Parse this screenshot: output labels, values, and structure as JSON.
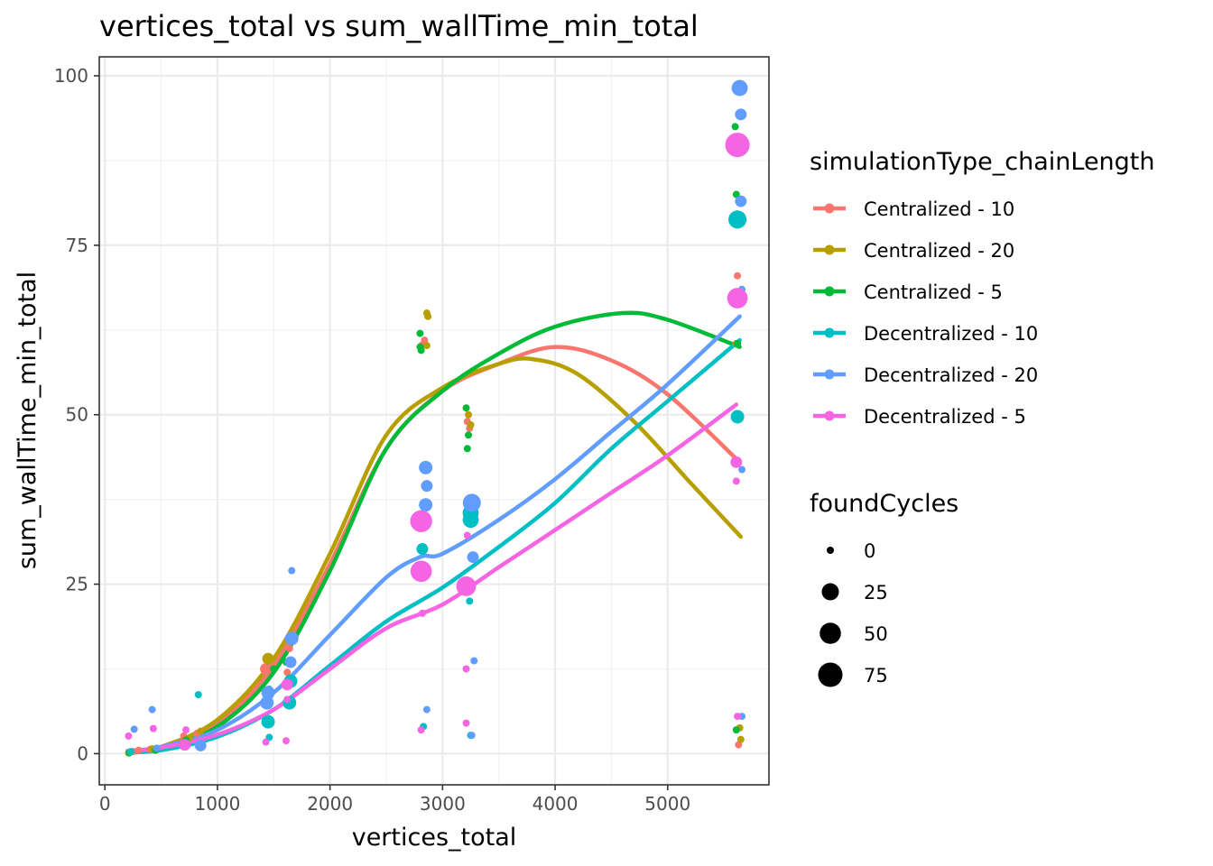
{
  "chart_data": {
    "type": "scatter",
    "title": "vertices_total  vs  sum_wallTime_min_total",
    "xlabel": "vertices_total",
    "ylabel": "sum_wallTime_min_total",
    "xlim": [
      -50,
      5900
    ],
    "ylim": [
      -4.6,
      102.8
    ],
    "x_ticks": [
      0,
      1000,
      2000,
      3000,
      4000,
      5000
    ],
    "y_ticks": [
      0,
      25,
      50,
      75,
      100
    ],
    "grid": true,
    "legend_position": "right",
    "color_legend": {
      "title": "simulationType_chainLength",
      "entries": [
        "Centralized - 10",
        "Centralized - 20",
        "Centralized - 5",
        "Decentralized - 10",
        "Decentralized - 20",
        "Decentralized - 5"
      ]
    },
    "size_legend": {
      "title": "foundCycles",
      "entries": [
        0,
        25,
        50,
        75
      ]
    },
    "colors": [
      "#F8766D",
      "#B79F00",
      "#00BA38",
      "#00BFC4",
      "#619CFF",
      "#F564E3"
    ],
    "series": [
      {
        "name": "Centralized - 10",
        "points": [
          [
            210,
            0.1,
            0
          ],
          [
            250,
            0.3,
            0
          ],
          [
            300,
            0.5,
            0
          ],
          [
            400,
            0.6,
            0
          ],
          [
            700,
            2.6,
            0
          ],
          [
            820,
            3.0,
            0
          ],
          [
            1430,
            12.5,
            5
          ],
          [
            1460,
            13.5,
            0
          ],
          [
            1620,
            12.0,
            0
          ],
          [
            1640,
            15.5,
            0
          ],
          [
            2820,
            60.3,
            0
          ],
          [
            2840,
            61.0,
            0
          ],
          [
            3220,
            49.0,
            0
          ],
          [
            3240,
            48.0,
            0
          ],
          [
            5600,
            43.0,
            0
          ],
          [
            5620,
            70.5,
            0
          ],
          [
            5630,
            1.3,
            0
          ]
        ],
        "trend": [
          [
            200,
            0.2
          ],
          [
            500,
            0.9
          ],
          [
            1000,
            4.5
          ],
          [
            1500,
            13.0
          ],
          [
            2000,
            28.0
          ],
          [
            2500,
            45.0
          ],
          [
            3000,
            53.5
          ],
          [
            3500,
            57.5
          ],
          [
            4000,
            60.0
          ],
          [
            4500,
            58.0
          ],
          [
            5000,
            53.0
          ],
          [
            5640,
            43.0
          ]
        ]
      },
      {
        "name": "Centralized - 20",
        "points": [
          [
            220,
            0.2,
            0
          ],
          [
            420,
            0.7,
            0
          ],
          [
            750,
            2.3,
            0
          ],
          [
            850,
            3.3,
            0
          ],
          [
            1450,
            14.0,
            5
          ],
          [
            1640,
            16.5,
            0
          ],
          [
            2860,
            65.0,
            0
          ],
          [
            2870,
            64.5,
            0
          ],
          [
            2860,
            60.2,
            0
          ],
          [
            3230,
            50.0,
            0
          ],
          [
            3250,
            48.5,
            0
          ],
          [
            5610,
            60.5,
            0
          ],
          [
            5640,
            3.8,
            0
          ],
          [
            5650,
            2.1,
            0
          ]
        ],
        "trend": [
          [
            200,
            0.2
          ],
          [
            500,
            1.0
          ],
          [
            1000,
            5.0
          ],
          [
            1500,
            14.0
          ],
          [
            2000,
            29.5
          ],
          [
            2500,
            47.0
          ],
          [
            3000,
            54.0
          ],
          [
            3500,
            57.5
          ],
          [
            3800,
            58.2
          ],
          [
            4200,
            56.0
          ],
          [
            4700,
            49.0
          ],
          [
            5200,
            40.0
          ],
          [
            5650,
            32.0
          ]
        ]
      },
      {
        "name": "Centralized - 5",
        "points": [
          [
            215,
            0.1,
            0
          ],
          [
            450,
            0.5,
            0
          ],
          [
            720,
            2.0,
            0
          ],
          [
            1460,
            9.5,
            0
          ],
          [
            1500,
            12.5,
            0
          ],
          [
            1610,
            13.5,
            0
          ],
          [
            2800,
            62.0,
            0
          ],
          [
            2810,
            59.5,
            0
          ],
          [
            2800,
            60.0,
            0
          ],
          [
            3210,
            51.0,
            0
          ],
          [
            3220,
            45.0,
            0
          ],
          [
            3230,
            47.0,
            0
          ],
          [
            5600,
            92.5,
            0
          ],
          [
            5610,
            82.5,
            0
          ],
          [
            5620,
            60.5,
            0
          ],
          [
            5610,
            3.5,
            0
          ]
        ],
        "trend": [
          [
            200,
            0.1
          ],
          [
            500,
            0.8
          ],
          [
            1000,
            4.0
          ],
          [
            1500,
            12.0
          ],
          [
            2000,
            27.0
          ],
          [
            2500,
            45.0
          ],
          [
            3000,
            53.5
          ],
          [
            3500,
            59.0
          ],
          [
            4000,
            63.0
          ],
          [
            4600,
            65.0
          ],
          [
            5000,
            64.0
          ],
          [
            5640,
            60.0
          ]
        ]
      },
      {
        "name": "Decentralized - 10",
        "points": [
          [
            230,
            0.3,
            0
          ],
          [
            830,
            8.7,
            0
          ],
          [
            1450,
            4.7,
            10
          ],
          [
            1460,
            2.4,
            0
          ],
          [
            1640,
            7.5,
            10
          ],
          [
            1650,
            10.7,
            10
          ],
          [
            2820,
            30.2,
            5
          ],
          [
            2830,
            4.0,
            0
          ],
          [
            3250,
            34.5,
            20
          ],
          [
            3250,
            35.5,
            20
          ],
          [
            3240,
            22.5,
            0
          ],
          [
            3250,
            2.7,
            0
          ],
          [
            5620,
            78.8,
            30
          ],
          [
            5620,
            49.7,
            10
          ]
        ],
        "trend": [
          [
            200,
            0.2
          ],
          [
            500,
            0.5
          ],
          [
            1000,
            2.5
          ],
          [
            1500,
            6.5
          ],
          [
            2000,
            13.0
          ],
          [
            2500,
            19.5
          ],
          [
            3000,
            24.5
          ],
          [
            3500,
            30.5
          ],
          [
            4000,
            37.0
          ],
          [
            4500,
            45.0
          ],
          [
            5000,
            52.0
          ],
          [
            5640,
            61.0
          ]
        ]
      },
      {
        "name": "Decentralized - 20",
        "points": [
          [
            260,
            3.6,
            0
          ],
          [
            420,
            6.5,
            0
          ],
          [
            460,
            0.8,
            0
          ],
          [
            850,
            1.2,
            5
          ],
          [
            1440,
            7.5,
            10
          ],
          [
            1450,
            9.0,
            10
          ],
          [
            1660,
            27.0,
            0
          ],
          [
            1660,
            17.0,
            10
          ],
          [
            1650,
            13.5,
            5
          ],
          [
            2850,
            42.2,
            10
          ],
          [
            2860,
            39.5,
            5
          ],
          [
            2850,
            36.7,
            10
          ],
          [
            2860,
            6.5,
            0
          ],
          [
            3260,
            37.0,
            30
          ],
          [
            3280,
            13.7,
            0
          ],
          [
            3270,
            29.0,
            5
          ],
          [
            3260,
            2.7,
            0
          ],
          [
            5640,
            98.2,
            20
          ],
          [
            5650,
            94.3,
            5
          ],
          [
            5650,
            81.5,
            5
          ],
          [
            5660,
            68.5,
            0
          ],
          [
            5660,
            41.9,
            0
          ],
          [
            5660,
            5.5,
            0
          ]
        ],
        "trend": [
          [
            200,
            0.3
          ],
          [
            500,
            1.0
          ],
          [
            1000,
            3.5
          ],
          [
            1500,
            9.0
          ],
          [
            2000,
            17.5
          ],
          [
            2500,
            26.0
          ],
          [
            2800,
            29.0
          ],
          [
            3000,
            29.5
          ],
          [
            3500,
            34.5
          ],
          [
            4000,
            40.5
          ],
          [
            4500,
            47.5
          ],
          [
            5000,
            54.5
          ],
          [
            5640,
            64.5
          ]
        ]
      },
      {
        "name": "Decentralized - 5",
        "points": [
          [
            210,
            2.6,
            0
          ],
          [
            430,
            3.7,
            0
          ],
          [
            720,
            3.5,
            0
          ],
          [
            710,
            1.3,
            5
          ],
          [
            1430,
            1.7,
            0
          ],
          [
            1620,
            10.2,
            5
          ],
          [
            1620,
            8.0,
            0
          ],
          [
            1610,
            1.9,
            0
          ],
          [
            2810,
            34.3,
            55
          ],
          [
            2810,
            26.9,
            50
          ],
          [
            2820,
            20.7,
            0
          ],
          [
            2810,
            3.5,
            0
          ],
          [
            3210,
            24.7,
            40
          ],
          [
            3220,
            32.2,
            0
          ],
          [
            3210,
            12.5,
            0
          ],
          [
            3210,
            4.5,
            0
          ],
          [
            5620,
            89.8,
            75
          ],
          [
            5620,
            67.2,
            45
          ],
          [
            5610,
            43.0,
            5
          ],
          [
            5610,
            40.2,
            0
          ],
          [
            5620,
            5.5,
            0
          ]
        ],
        "trend": [
          [
            200,
            0.4
          ],
          [
            500,
            0.9
          ],
          [
            1000,
            2.8
          ],
          [
            1500,
            6.5
          ],
          [
            2000,
            12.5
          ],
          [
            2500,
            18.5
          ],
          [
            3000,
            22.0
          ],
          [
            3500,
            27.5
          ],
          [
            4000,
            33.0
          ],
          [
            4500,
            38.5
          ],
          [
            5000,
            44.0
          ],
          [
            5610,
            51.5
          ]
        ]
      }
    ]
  }
}
